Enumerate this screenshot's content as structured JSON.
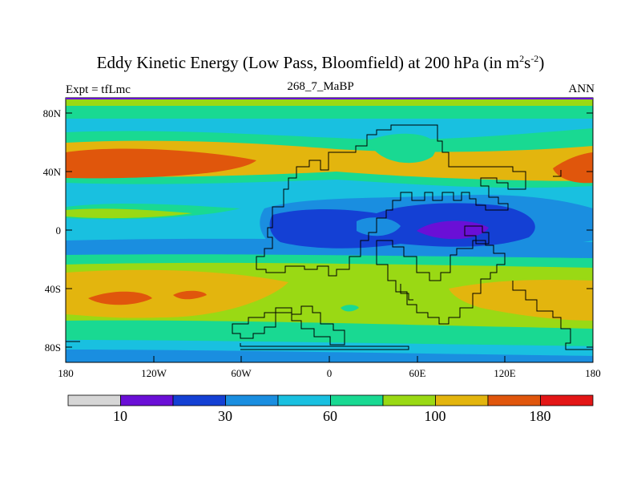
{
  "title": {
    "main": "Eddy Kinetic Energy (Low Pass, Bloomfield) at 200 hPa (in m",
    "sup1": "2",
    "mid": "s",
    "sup2": "-2",
    "end": ")"
  },
  "subtitle": {
    "left": "Expt = tfLmc",
    "center": "268_7_MaBP",
    "right": "ANN"
  },
  "axes": {
    "lat_ticks": [
      "80N",
      "40N",
      "0",
      "40S",
      "80S"
    ],
    "lon_ticks": [
      "180",
      "120W",
      "60W",
      "0",
      "60E",
      "120E",
      "180"
    ]
  },
  "colorbar": {
    "labels": [
      "10",
      "30",
      "60",
      "100",
      "180"
    ],
    "colors": [
      "#d6d6d6",
      "#6a0fd6",
      "#1440d4",
      "#1a8ee0",
      "#19c0e0",
      "#19d992",
      "#9ad914",
      "#e3b50e",
      "#e0560c",
      "#e31616"
    ]
  },
  "legend_colors": {
    "bg": "#ffffff",
    "violet": "#6a0fd6",
    "darkblue": "#1440d4",
    "blue": "#1a8ee0",
    "cyan": "#19c0e0",
    "teal": "#19d992",
    "lime": "#9ad914",
    "amber": "#e3b50e",
    "orange": "#e0560c"
  }
}
